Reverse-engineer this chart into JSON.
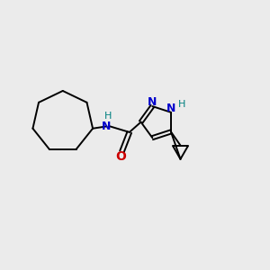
{
  "background_color": "#ebebeb",
  "bond_color": "#000000",
  "N_color": "#0000cc",
  "O_color": "#cc0000",
  "NH_color": "#008080",
  "line_width": 1.4,
  "fig_size": [
    3.0,
    3.0
  ],
  "dpi": 100,
  "xlim": [
    0,
    10
  ],
  "ylim": [
    0,
    10
  ]
}
